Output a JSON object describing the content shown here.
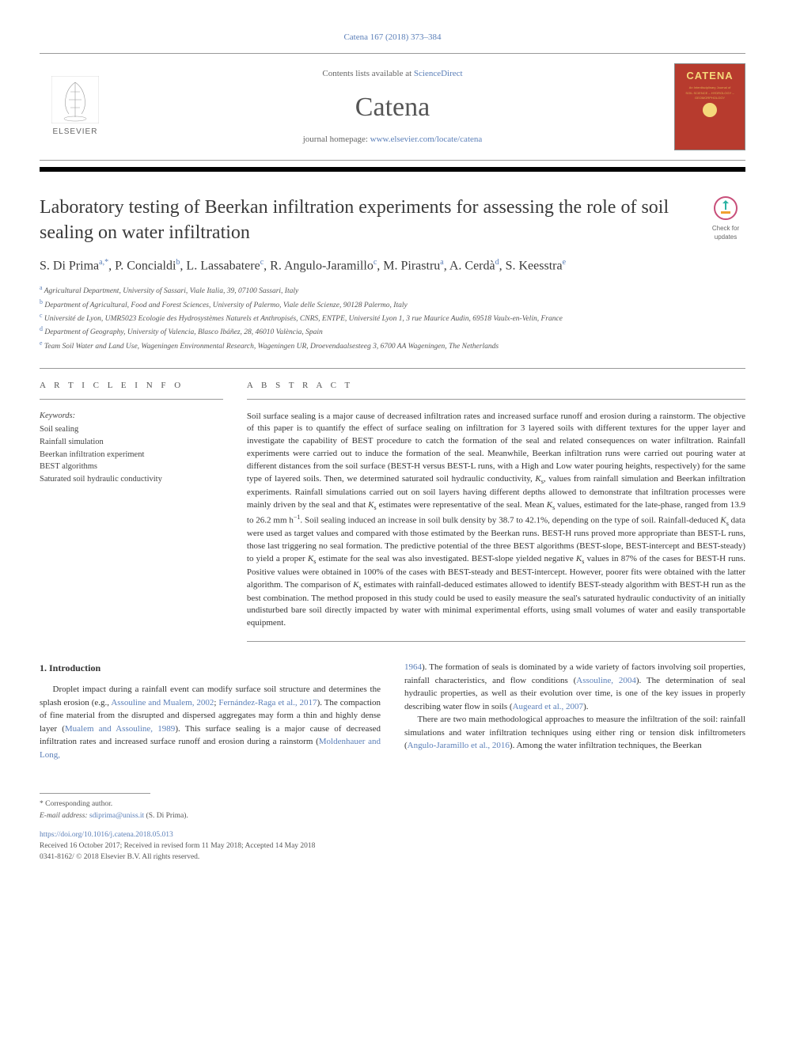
{
  "journal_ref": "Catena 167 (2018) 373–384",
  "header": {
    "contents_prefix": "Contents lists available at ",
    "contents_link": "ScienceDirect",
    "journal_name": "Catena",
    "homepage_prefix": "journal homepage: ",
    "homepage_url": "www.elsevier.com/locate/catena",
    "elsevier": "ELSEVIER",
    "cover_title": "CATENA",
    "cover_sub1": "An Interdisciplinary Journal of",
    "cover_sub2": "SOIL SCIENCE – HYDROLOGY – GEOMORPHOLOGY"
  },
  "title": "Laboratory testing of Beerkan infiltration experiments for assessing the role of soil sealing on water infiltration",
  "updates_text": "Check for updates",
  "authors_html": "S. Di Prima<sup>a,*</sup>, P. Concialdi<sup>b</sup>, L. Lassabatere<sup>c</sup>, R. Angulo-Jaramillo<sup>c</sup>, M. Pirastru<sup>a</sup>, A. Cerdà<sup>d</sup>, S. Keesstra<sup>e</sup>",
  "affiliations": [
    {
      "sup": "a",
      "text": "Agricultural Department, University of Sassari, Viale Italia, 39, 07100 Sassari, Italy"
    },
    {
      "sup": "b",
      "text": "Department of Agricultural, Food and Forest Sciences, University of Palermo, Viale delle Scienze, 90128 Palermo, Italy"
    },
    {
      "sup": "c",
      "text": "Université de Lyon, UMR5023 Ecologie des Hydrosystèmes Naturels et Anthropisés, CNRS, ENTPE, Université Lyon 1, 3 rue Maurice Audin, 69518 Vaulx-en-Velin, France"
    },
    {
      "sup": "d",
      "text": "Department of Geography, University of Valencia, Blasco Ibáñez, 28, 46010 València, Spain"
    },
    {
      "sup": "e",
      "text": "Team Soil Water and Land Use, Wageningen Environmental Research, Wageningen UR, Droevendaalsesteeg 3, 6700 AA Wageningen, The Netherlands"
    }
  ],
  "article_info_label": "A R T I C L E  I N F O",
  "abstract_label": "A B S T R A C T",
  "keywords_label": "Keywords:",
  "keywords": [
    "Soil sealing",
    "Rainfall simulation",
    "Beerkan infiltration experiment",
    "BEST algorithms",
    "Saturated soil hydraulic conductivity"
  ],
  "abstract": "Soil surface sealing is a major cause of decreased infiltration rates and increased surface runoff and erosion during a rainstorm. The objective of this paper is to quantify the effect of surface sealing on infiltration for 3 layered soils with different textures for the upper layer and investigate the capability of BEST procedure to catch the formation of the seal and related consequences on water infiltration. Rainfall experiments were carried out to induce the formation of the seal. Meanwhile, Beerkan infiltration runs were carried out pouring water at different distances from the soil surface (BEST-H versus BEST-L runs, with a High and Low water pouring heights, respectively) for the same type of layered soils. Then, we determined saturated soil hydraulic conductivity, Ks, values from rainfall simulation and Beerkan infiltration experiments. Rainfall simulations carried out on soil layers having different depths allowed to demonstrate that infiltration processes were mainly driven by the seal and that Ks estimates were representative of the seal. Mean Ks values, estimated for the late-phase, ranged from 13.9 to 26.2 mm h−1. Soil sealing induced an increase in soil bulk density by 38.7 to 42.1%, depending on the type of soil. Rainfall-deduced Ks data were used as target values and compared with those estimated by the Beerkan runs. BEST-H runs proved more appropriate than BEST-L runs, those last triggering no seal formation. The predictive potential of the three BEST algorithms (BEST-slope, BEST-intercept and BEST-steady) to yield a proper Ks estimate for the seal was also investigated. BEST-slope yielded negative Ks values in 87% of the cases for BEST-H runs. Positive values were obtained in 100% of the cases with BEST-steady and BEST-intercept. However, poorer fits were obtained with the latter algorithm. The comparison of Ks estimates with rainfall-deduced estimates allowed to identify BEST-steady algorithm with BEST-H run as the best combination. The method proposed in this study could be used to easily measure the seal's saturated hydraulic conductivity of an initially undisturbed bare soil directly impacted by water with minimal experimental efforts, using small volumes of water and easily transportable equipment.",
  "intro_heading": "1. Introduction",
  "intro_col1_part1": "Droplet impact during a rainfall event can modify surface soil structure and determines the splash erosion (e.g., ",
  "intro_col1_link1": "Assouline and Mualem, 2002",
  "intro_col1_part2": "; ",
  "intro_col1_link2": "Fernández-Raga et al., 2017",
  "intro_col1_part3": "). The compaction of fine material from the disrupted and dispersed aggregates may form a thin and highly dense layer (",
  "intro_col1_link3": "Mualem and Assouline, 1989",
  "intro_col1_part4": "). This surface sealing is a major cause of decreased infiltration rates and increased surface runoff and erosion during a rainstorm (",
  "intro_col1_link4": "Moldenhauer and Long,",
  "intro_col2_link1": "1964",
  "intro_col2_part1": "). The formation of seals is dominated by a wide variety of factors involving soil properties, rainfall characteristics, and flow conditions (",
  "intro_col2_link2": "Assouline, 2004",
  "intro_col2_part2": "). The determination of seal hydraulic properties, as well as their evolution over time, is one of the key issues in properly describing water flow in soils (",
  "intro_col2_link3": "Augeard et al., 2007",
  "intro_col2_part3": ").",
  "intro_col2_p2_part1": "There are two main methodological approaches to measure the infiltration of the soil: rainfall simulations and water infiltration techniques using either ring or tension disk infiltrometers (",
  "intro_col2_p2_link1": "Angulo-Jaramillo et al., 2016",
  "intro_col2_p2_part2": "). Among the water infiltration techniques, the Beerkan",
  "footer": {
    "corr_marker": "* Corresponding author.",
    "email_label": "E-mail address: ",
    "email": "sdiprima@uniss.it",
    "email_suffix": " (S. Di Prima).",
    "doi": "https://doi.org/10.1016/j.catena.2018.05.013",
    "received": "Received 16 October 2017; Received in revised form 11 May 2018; Accepted 14 May 2018",
    "copyright": "0341-8162/ © 2018 Elsevier B.V. All rights reserved."
  },
  "colors": {
    "link": "#5b7fb8",
    "cover_bg": "#b73b2e",
    "cover_text": "#f5d97a",
    "text": "#333333"
  }
}
